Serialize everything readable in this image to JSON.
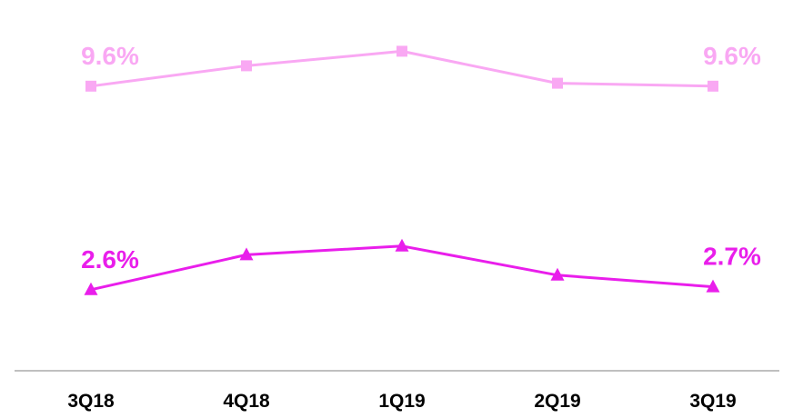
{
  "chart_data": {
    "type": "line",
    "title": "",
    "xlabel": "",
    "ylabel": "",
    "categories": [
      "3Q18",
      "4Q18",
      "1Q19",
      "2Q19",
      "3Q19"
    ],
    "ylim": [
      0,
      12
    ],
    "grid": false,
    "legend": "none",
    "series": [
      {
        "values": [
          9.6,
          10.3,
          10.8,
          9.7,
          9.6
        ],
        "color": "#F9A8F3",
        "marker": "square",
        "data_labels": [
          "9.6%",
          "",
          "",
          "",
          "9.6%"
        ]
      },
      {
        "values": [
          2.6,
          3.8,
          4.1,
          3.1,
          2.7
        ],
        "color": "#E91EEB",
        "marker": "triangle",
        "data_labels": [
          "2.6%",
          "",
          "",
          "",
          "2.7%"
        ]
      }
    ],
    "colors": {
      "axis": "#9A9A9A",
      "tick_label": "#000000"
    }
  }
}
